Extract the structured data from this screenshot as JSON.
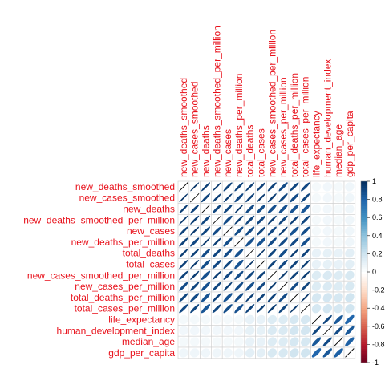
{
  "chart_data": {
    "type": "heatmap",
    "method": "ellipse",
    "layout": "full",
    "variables": [
      "new_deaths_smoothed",
      "new_cases_smoothed",
      "new_deaths",
      "new_deaths_smoothed_per_million",
      "new_cases",
      "new_deaths_per_million",
      "total_deaths",
      "total_cases",
      "new_cases_smoothed_per_million",
      "new_cases_per_million",
      "total_deaths_per_million",
      "total_cases_per_million",
      "life_expectancy",
      "human_development_index",
      "median_age",
      "gdp_per_capita"
    ],
    "matrix": [
      [
        1.0,
        0.98,
        0.95,
        0.97,
        0.93,
        0.93,
        0.95,
        0.94,
        0.93,
        0.9,
        0.92,
        0.91,
        0.05,
        0.06,
        0.05,
        0.07
      ],
      [
        0.98,
        1.0,
        0.93,
        0.95,
        0.96,
        0.91,
        0.94,
        0.96,
        0.95,
        0.92,
        0.9,
        0.92,
        0.05,
        0.06,
        0.05,
        0.07
      ],
      [
        0.95,
        0.93,
        1.0,
        0.92,
        0.92,
        0.97,
        0.9,
        0.89,
        0.88,
        0.88,
        0.87,
        0.86,
        0.05,
        0.06,
        0.05,
        0.07
      ],
      [
        0.97,
        0.95,
        0.92,
        1.0,
        0.9,
        0.95,
        0.92,
        0.91,
        0.95,
        0.92,
        0.94,
        0.92,
        0.05,
        0.06,
        0.05,
        0.07
      ],
      [
        0.93,
        0.96,
        0.92,
        0.9,
        1.0,
        0.89,
        0.9,
        0.92,
        0.91,
        0.95,
        0.87,
        0.89,
        0.05,
        0.06,
        0.05,
        0.07
      ],
      [
        0.93,
        0.91,
        0.97,
        0.95,
        0.89,
        1.0,
        0.88,
        0.87,
        0.9,
        0.9,
        0.9,
        0.88,
        0.05,
        0.06,
        0.05,
        0.07
      ],
      [
        0.95,
        0.94,
        0.9,
        0.92,
        0.9,
        0.88,
        1.0,
        0.98,
        0.92,
        0.89,
        0.95,
        0.93,
        0.1,
        0.11,
        0.1,
        0.12
      ],
      [
        0.94,
        0.96,
        0.89,
        0.91,
        0.92,
        0.87,
        0.98,
        1.0,
        0.93,
        0.91,
        0.93,
        0.95,
        0.1,
        0.11,
        0.1,
        0.12
      ],
      [
        0.93,
        0.95,
        0.88,
        0.95,
        0.91,
        0.9,
        0.92,
        0.93,
        1.0,
        0.96,
        0.93,
        0.95,
        0.15,
        0.16,
        0.15,
        0.17
      ],
      [
        0.9,
        0.92,
        0.88,
        0.92,
        0.95,
        0.9,
        0.89,
        0.91,
        0.96,
        1.0,
        0.9,
        0.92,
        0.15,
        0.16,
        0.15,
        0.17
      ],
      [
        0.92,
        0.9,
        0.87,
        0.94,
        0.87,
        0.9,
        0.95,
        0.93,
        0.93,
        0.9,
        1.0,
        0.97,
        0.18,
        0.19,
        0.18,
        0.2
      ],
      [
        0.91,
        0.92,
        0.86,
        0.92,
        0.89,
        0.88,
        0.93,
        0.95,
        0.95,
        0.92,
        0.97,
        1.0,
        0.18,
        0.19,
        0.18,
        0.2
      ],
      [
        0.05,
        0.05,
        0.05,
        0.05,
        0.05,
        0.05,
        0.1,
        0.1,
        0.15,
        0.15,
        0.18,
        0.18,
        1.0,
        0.92,
        0.85,
        0.8
      ],
      [
        0.06,
        0.06,
        0.06,
        0.06,
        0.06,
        0.06,
        0.11,
        0.11,
        0.16,
        0.16,
        0.19,
        0.19,
        0.92,
        1.0,
        0.9,
        0.85
      ],
      [
        0.05,
        0.05,
        0.05,
        0.05,
        0.05,
        0.05,
        0.1,
        0.1,
        0.15,
        0.15,
        0.18,
        0.18,
        0.85,
        0.9,
        1.0,
        0.82
      ],
      [
        0.07,
        0.07,
        0.07,
        0.07,
        0.07,
        0.07,
        0.12,
        0.12,
        0.17,
        0.17,
        0.2,
        0.2,
        0.8,
        0.85,
        0.82,
        1.0
      ]
    ],
    "colorbar": {
      "ticks": [
        "1",
        "0.8",
        "0.6",
        "0.4",
        "0.2",
        "0",
        "-0.2",
        "-0.4",
        "-0.6",
        "-0.8",
        "-1"
      ],
      "range": [
        -1,
        1
      ],
      "colors": [
        "#67001f",
        "#b2182b",
        "#d6604d",
        "#f4a582",
        "#fddbc7",
        "#ffffff",
        "#d1e5f0",
        "#92c5de",
        "#4393c3",
        "#2166ac",
        "#053061"
      ]
    },
    "label_color": "#e8111b"
  }
}
